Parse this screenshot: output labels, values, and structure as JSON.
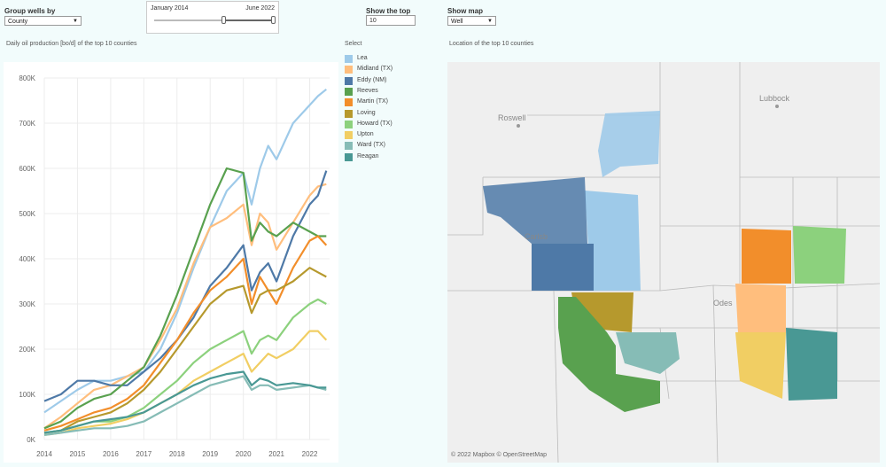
{
  "controls": {
    "group_label": "Group wells by",
    "group_value": "County",
    "slider_start": "January 2014",
    "slider_end": "June 2022",
    "top_label": "Show the top",
    "top_value": "10",
    "map_label": "Show map",
    "map_value": "Well"
  },
  "chart_title": "Daily oil production [bo/d] of the top 10 counties",
  "legend_title": "Select",
  "map_title": "Location of the top 10 counties",
  "map": {
    "labels": [
      "Roswell",
      "Lubbock",
      "Carlsb",
      "Odes"
    ],
    "credit": "© 2022 Mapbox © OpenStreetMap"
  },
  "chart_data": {
    "type": "line",
    "title": "Daily oil production [bo/d] of the top 10 counties",
    "xlabel": "",
    "ylabel": "",
    "xlim": [
      2014.0,
      2022.6
    ],
    "ylim": [
      0,
      800000
    ],
    "x_ticks": [
      "2014",
      "2015",
      "2016",
      "2017",
      "2018",
      "2019",
      "2020",
      "2021",
      "2022"
    ],
    "y_ticks": [
      {
        "v": 0,
        "label": "0K"
      },
      {
        "v": 100000,
        "label": "100K"
      },
      {
        "v": 200000,
        "label": "200K"
      },
      {
        "v": 300000,
        "label": "300K"
      },
      {
        "v": 400000,
        "label": "400K"
      },
      {
        "v": 500000,
        "label": "500K"
      },
      {
        "v": 600000,
        "label": "600K"
      },
      {
        "v": 700000,
        "label": "700K"
      },
      {
        "v": 800000,
        "label": "800K"
      }
    ],
    "grid": true,
    "x": [
      2014.0,
      2014.5,
      2015.0,
      2015.5,
      2016.0,
      2016.5,
      2017.0,
      2017.5,
      2018.0,
      2018.5,
      2019.0,
      2019.5,
      2020.0,
      2020.25,
      2020.5,
      2020.75,
      2021.0,
      2021.5,
      2022.0,
      2022.25,
      2022.5
    ],
    "series": [
      {
        "name": "Lea",
        "color": "#9ecae9",
        "values": [
          60000,
          85000,
          110000,
          130000,
          130000,
          140000,
          150000,
          200000,
          280000,
          380000,
          470000,
          550000,
          590000,
          520000,
          600000,
          650000,
          620000,
          700000,
          740000,
          760000,
          775000
        ]
      },
      {
        "name": "Midland (TX)",
        "color": "#ffbe7d",
        "values": [
          25000,
          50000,
          80000,
          110000,
          120000,
          140000,
          160000,
          220000,
          290000,
          390000,
          470000,
          490000,
          520000,
          430000,
          500000,
          480000,
          420000,
          480000,
          540000,
          560000,
          565000
        ]
      },
      {
        "name": "Eddy (NM)",
        "color": "#4e79a7",
        "values": [
          85000,
          100000,
          130000,
          130000,
          120000,
          120000,
          150000,
          180000,
          220000,
          270000,
          340000,
          380000,
          430000,
          330000,
          370000,
          390000,
          350000,
          450000,
          520000,
          540000,
          595000
        ]
      },
      {
        "name": "Reeves",
        "color": "#59a14f",
        "values": [
          25000,
          40000,
          70000,
          90000,
          100000,
          130000,
          160000,
          230000,
          320000,
          420000,
          520000,
          600000,
          590000,
          440000,
          480000,
          460000,
          450000,
          480000,
          460000,
          450000,
          450000
        ]
      },
      {
        "name": "Martin (TX)",
        "color": "#f28e2b",
        "values": [
          20000,
          30000,
          45000,
          60000,
          70000,
          90000,
          120000,
          170000,
          220000,
          280000,
          330000,
          360000,
          400000,
          300000,
          360000,
          330000,
          300000,
          380000,
          440000,
          450000,
          430000
        ]
      },
      {
        "name": "Loving",
        "color": "#b6992d",
        "values": [
          15000,
          20000,
          40000,
          50000,
          60000,
          80000,
          110000,
          150000,
          200000,
          250000,
          300000,
          330000,
          340000,
          280000,
          320000,
          330000,
          330000,
          350000,
          380000,
          370000,
          360000
        ]
      },
      {
        "name": "Howard (TX)",
        "color": "#8cd17d",
        "values": [
          15000,
          20000,
          30000,
          40000,
          40000,
          50000,
          70000,
          100000,
          130000,
          170000,
          200000,
          220000,
          240000,
          190000,
          220000,
          230000,
          220000,
          270000,
          300000,
          310000,
          300000
        ]
      },
      {
        "name": "Upton",
        "color": "#f1ce63",
        "values": [
          10000,
          15000,
          25000,
          30000,
          35000,
          45000,
          60000,
          80000,
          100000,
          130000,
          150000,
          170000,
          190000,
          150000,
          170000,
          190000,
          180000,
          200000,
          240000,
          240000,
          220000
        ]
      },
      {
        "name": "Ward (TX)",
        "color": "#86bcb6",
        "values": [
          10000,
          15000,
          20000,
          25000,
          25000,
          30000,
          40000,
          60000,
          80000,
          100000,
          120000,
          130000,
          140000,
          110000,
          120000,
          120000,
          110000,
          115000,
          120000,
          115000,
          110000
        ]
      },
      {
        "name": "Reagan",
        "color": "#499894",
        "values": [
          15000,
          20000,
          30000,
          40000,
          45000,
          50000,
          60000,
          80000,
          100000,
          120000,
          135000,
          145000,
          150000,
          120000,
          135000,
          130000,
          120000,
          125000,
          120000,
          115000,
          115000
        ]
      }
    ]
  }
}
